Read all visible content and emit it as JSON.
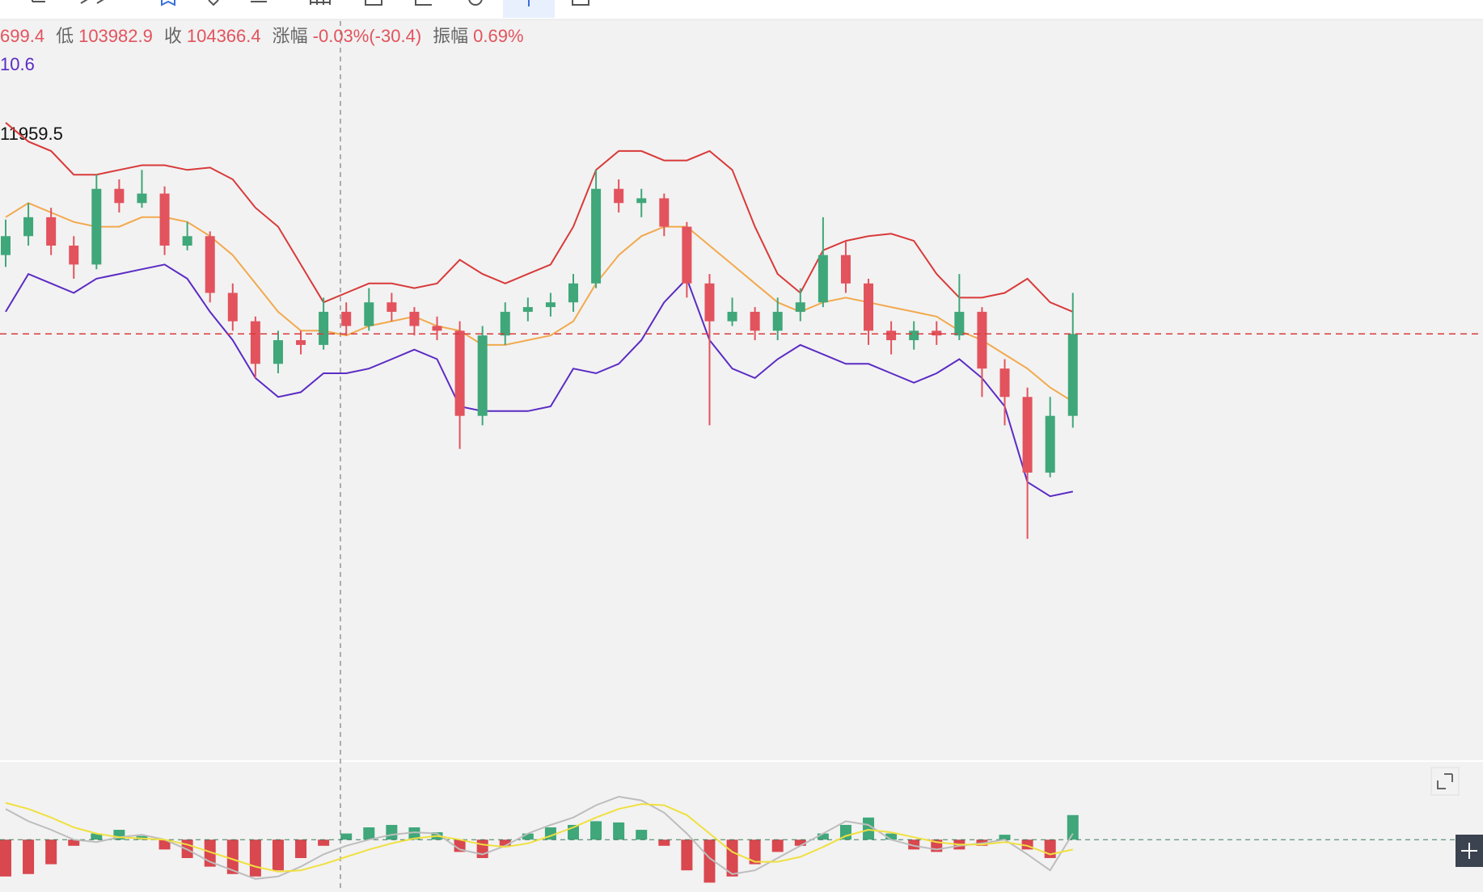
{
  "header": {
    "items": [
      {
        "text": "699.4"
      },
      {
        "label": "低",
        "text": "103982.9"
      },
      {
        "label": "收",
        "text": "104366.4"
      },
      {
        "label": "涨幅",
        "text": "-0.03%(-30.4)"
      },
      {
        "label": "振幅",
        "text": "0.69%"
      }
    ],
    "indicator_a": "10.6",
    "indicator_b": "11959.5"
  },
  "chart_data": [
    {
      "type": "candlestick",
      "ylim": [
        102560,
        105700
      ],
      "up_color": "#3fa77a",
      "down_color": "#e2535d",
      "candles": [
        [
          104700,
          104850,
          104650,
          104780
        ],
        [
          104780,
          104920,
          104740,
          104860
        ],
        [
          104860,
          104900,
          104700,
          104740
        ],
        [
          104740,
          104780,
          104600,
          104660
        ],
        [
          104660,
          105040,
          104640,
          104980
        ],
        [
          104980,
          105020,
          104880,
          104920
        ],
        [
          104920,
          105060,
          104900,
          104960
        ],
        [
          104960,
          104990,
          104700,
          104740
        ],
        [
          104740,
          104840,
          104720,
          104780
        ],
        [
          104780,
          104800,
          104500,
          104540
        ],
        [
          104540,
          104580,
          104380,
          104420
        ],
        [
          104420,
          104440,
          104180,
          104240
        ],
        [
          104240,
          104380,
          104200,
          104340
        ],
        [
          104340,
          104380,
          104280,
          104320
        ],
        [
          104320,
          104520,
          104300,
          104460
        ],
        [
          104460,
          104500,
          104360,
          104400
        ],
        [
          104400,
          104560,
          104380,
          104500
        ],
        [
          104500,
          104540,
          104420,
          104460
        ],
        [
          104460,
          104480,
          104360,
          104400
        ],
        [
          104400,
          104440,
          104340,
          104380
        ],
        [
          104380,
          104420,
          103880,
          104020
        ],
        [
          104020,
          104400,
          103980,
          104360
        ],
        [
          104360,
          104500,
          104320,
          104460
        ],
        [
          104460,
          104520,
          104420,
          104480
        ],
        [
          104480,
          104540,
          104440,
          104500
        ],
        [
          104500,
          104620,
          104460,
          104580
        ],
        [
          104580,
          105060,
          104560,
          104980
        ],
        [
          104980,
          105020,
          104880,
          104920
        ],
        [
          104920,
          104980,
          104860,
          104940
        ],
        [
          104940,
          104960,
          104780,
          104820
        ],
        [
          104820,
          104840,
          104520,
          104580
        ],
        [
          104580,
          104620,
          103980,
          104420
        ],
        [
          104420,
          104520,
          104400,
          104460
        ],
        [
          104460,
          104480,
          104340,
          104380
        ],
        [
          104380,
          104520,
          104340,
          104460
        ],
        [
          104460,
          104560,
          104420,
          104500
        ],
        [
          104500,
          104860,
          104480,
          104700
        ],
        [
          104700,
          104760,
          104540,
          104580
        ],
        [
          104580,
          104600,
          104320,
          104380
        ],
        [
          104380,
          104420,
          104280,
          104340
        ],
        [
          104340,
          104420,
          104300,
          104380
        ],
        [
          104380,
          104420,
          104320,
          104360
        ],
        [
          104360,
          104620,
          104340,
          104460
        ],
        [
          104460,
          104480,
          104100,
          104220
        ],
        [
          104220,
          104260,
          103980,
          104100
        ],
        [
          104100,
          104140,
          103500,
          103780
        ],
        [
          103780,
          104100,
          103760,
          104020
        ],
        [
          104020,
          104540,
          103970,
          104366.4
        ]
      ],
      "series": [
        {
          "color": "#d93a3a",
          "values": [
            105260,
            105180,
            105140,
            105040,
            105040,
            105060,
            105080,
            105080,
            105060,
            105070,
            105020,
            104900,
            104820,
            104660,
            104500,
            104540,
            104580,
            104580,
            104560,
            104580,
            104680,
            104620,
            104580,
            104620,
            104660,
            104820,
            105060,
            105140,
            105140,
            105100,
            105100,
            105140,
            105060,
            104820,
            104620,
            104540,
            104720,
            104760,
            104780,
            104790,
            104760,
            104620,
            104520,
            104520,
            104540,
            104600,
            104500,
            104460
          ]
        },
        {
          "color": "#f2a94e",
          "values": [
            104860,
            104920,
            104880,
            104840,
            104820,
            104820,
            104860,
            104860,
            104840,
            104780,
            104700,
            104580,
            104460,
            104380,
            104380,
            104360,
            104400,
            104420,
            104440,
            104400,
            104380,
            104320,
            104320,
            104340,
            104360,
            104420,
            104580,
            104700,
            104780,
            104820,
            104820,
            104740,
            104660,
            104580,
            104500,
            104460,
            104500,
            104520,
            104500,
            104480,
            104460,
            104440,
            104380,
            104340,
            104280,
            104220,
            104140,
            104080
          ]
        },
        {
          "color": "#5b2bc4",
          "values": [
            104460,
            104620,
            104580,
            104540,
            104600,
            104620,
            104640,
            104660,
            104600,
            104460,
            104340,
            104180,
            104100,
            104120,
            104200,
            104200,
            104220,
            104260,
            104300,
            104260,
            104060,
            104040,
            104040,
            104040,
            104060,
            104220,
            104200,
            104240,
            104340,
            104500,
            104600,
            104340,
            104220,
            104180,
            104260,
            104320,
            104280,
            104240,
            104240,
            104200,
            104160,
            104200,
            104260,
            104180,
            104060,
            103740,
            103680,
            103700
          ]
        }
      ]
    },
    {
      "type": "macd",
      "ylim": [
        -40,
        60
      ],
      "up_color": "#3fa77a",
      "down_color": "#d9474f",
      "values": [
        -30,
        -28,
        -20,
        -5,
        5,
        8,
        3,
        -8,
        -15,
        -22,
        -28,
        -30,
        -25,
        -15,
        -5,
        5,
        10,
        12,
        10,
        6,
        -10,
        -15,
        -5,
        5,
        10,
        12,
        15,
        14,
        8,
        -5,
        -25,
        -35,
        -30,
        -20,
        -10,
        -5,
        5,
        12,
        18,
        5,
        -8,
        -10,
        -8,
        -5,
        4,
        -8,
        -15,
        20
      ],
      "series": [
        {
          "color": "#bdbdbd",
          "values": [
            25,
            15,
            8,
            0,
            -2,
            2,
            4,
            0,
            -8,
            -18,
            -25,
            -32,
            -30,
            -22,
            -12,
            -5,
            0,
            4,
            6,
            5,
            -8,
            -12,
            -5,
            5,
            12,
            18,
            28,
            35,
            32,
            22,
            5,
            -15,
            -28,
            -25,
            -15,
            -5,
            5,
            15,
            12,
            0,
            -5,
            -8,
            -5,
            -3,
            0,
            -12,
            -25,
            5
          ]
        },
        {
          "color": "#f0e040",
          "values": [
            30,
            25,
            18,
            10,
            5,
            2,
            1,
            0,
            -4,
            -10,
            -16,
            -22,
            -26,
            -25,
            -20,
            -14,
            -8,
            -3,
            1,
            3,
            0,
            -4,
            -6,
            -3,
            3,
            10,
            18,
            25,
            29,
            28,
            20,
            5,
            -10,
            -18,
            -18,
            -14,
            -6,
            3,
            8,
            6,
            2,
            -2,
            -4,
            -4,
            -2,
            -5,
            -12,
            -8
          ]
        }
      ]
    }
  ]
}
